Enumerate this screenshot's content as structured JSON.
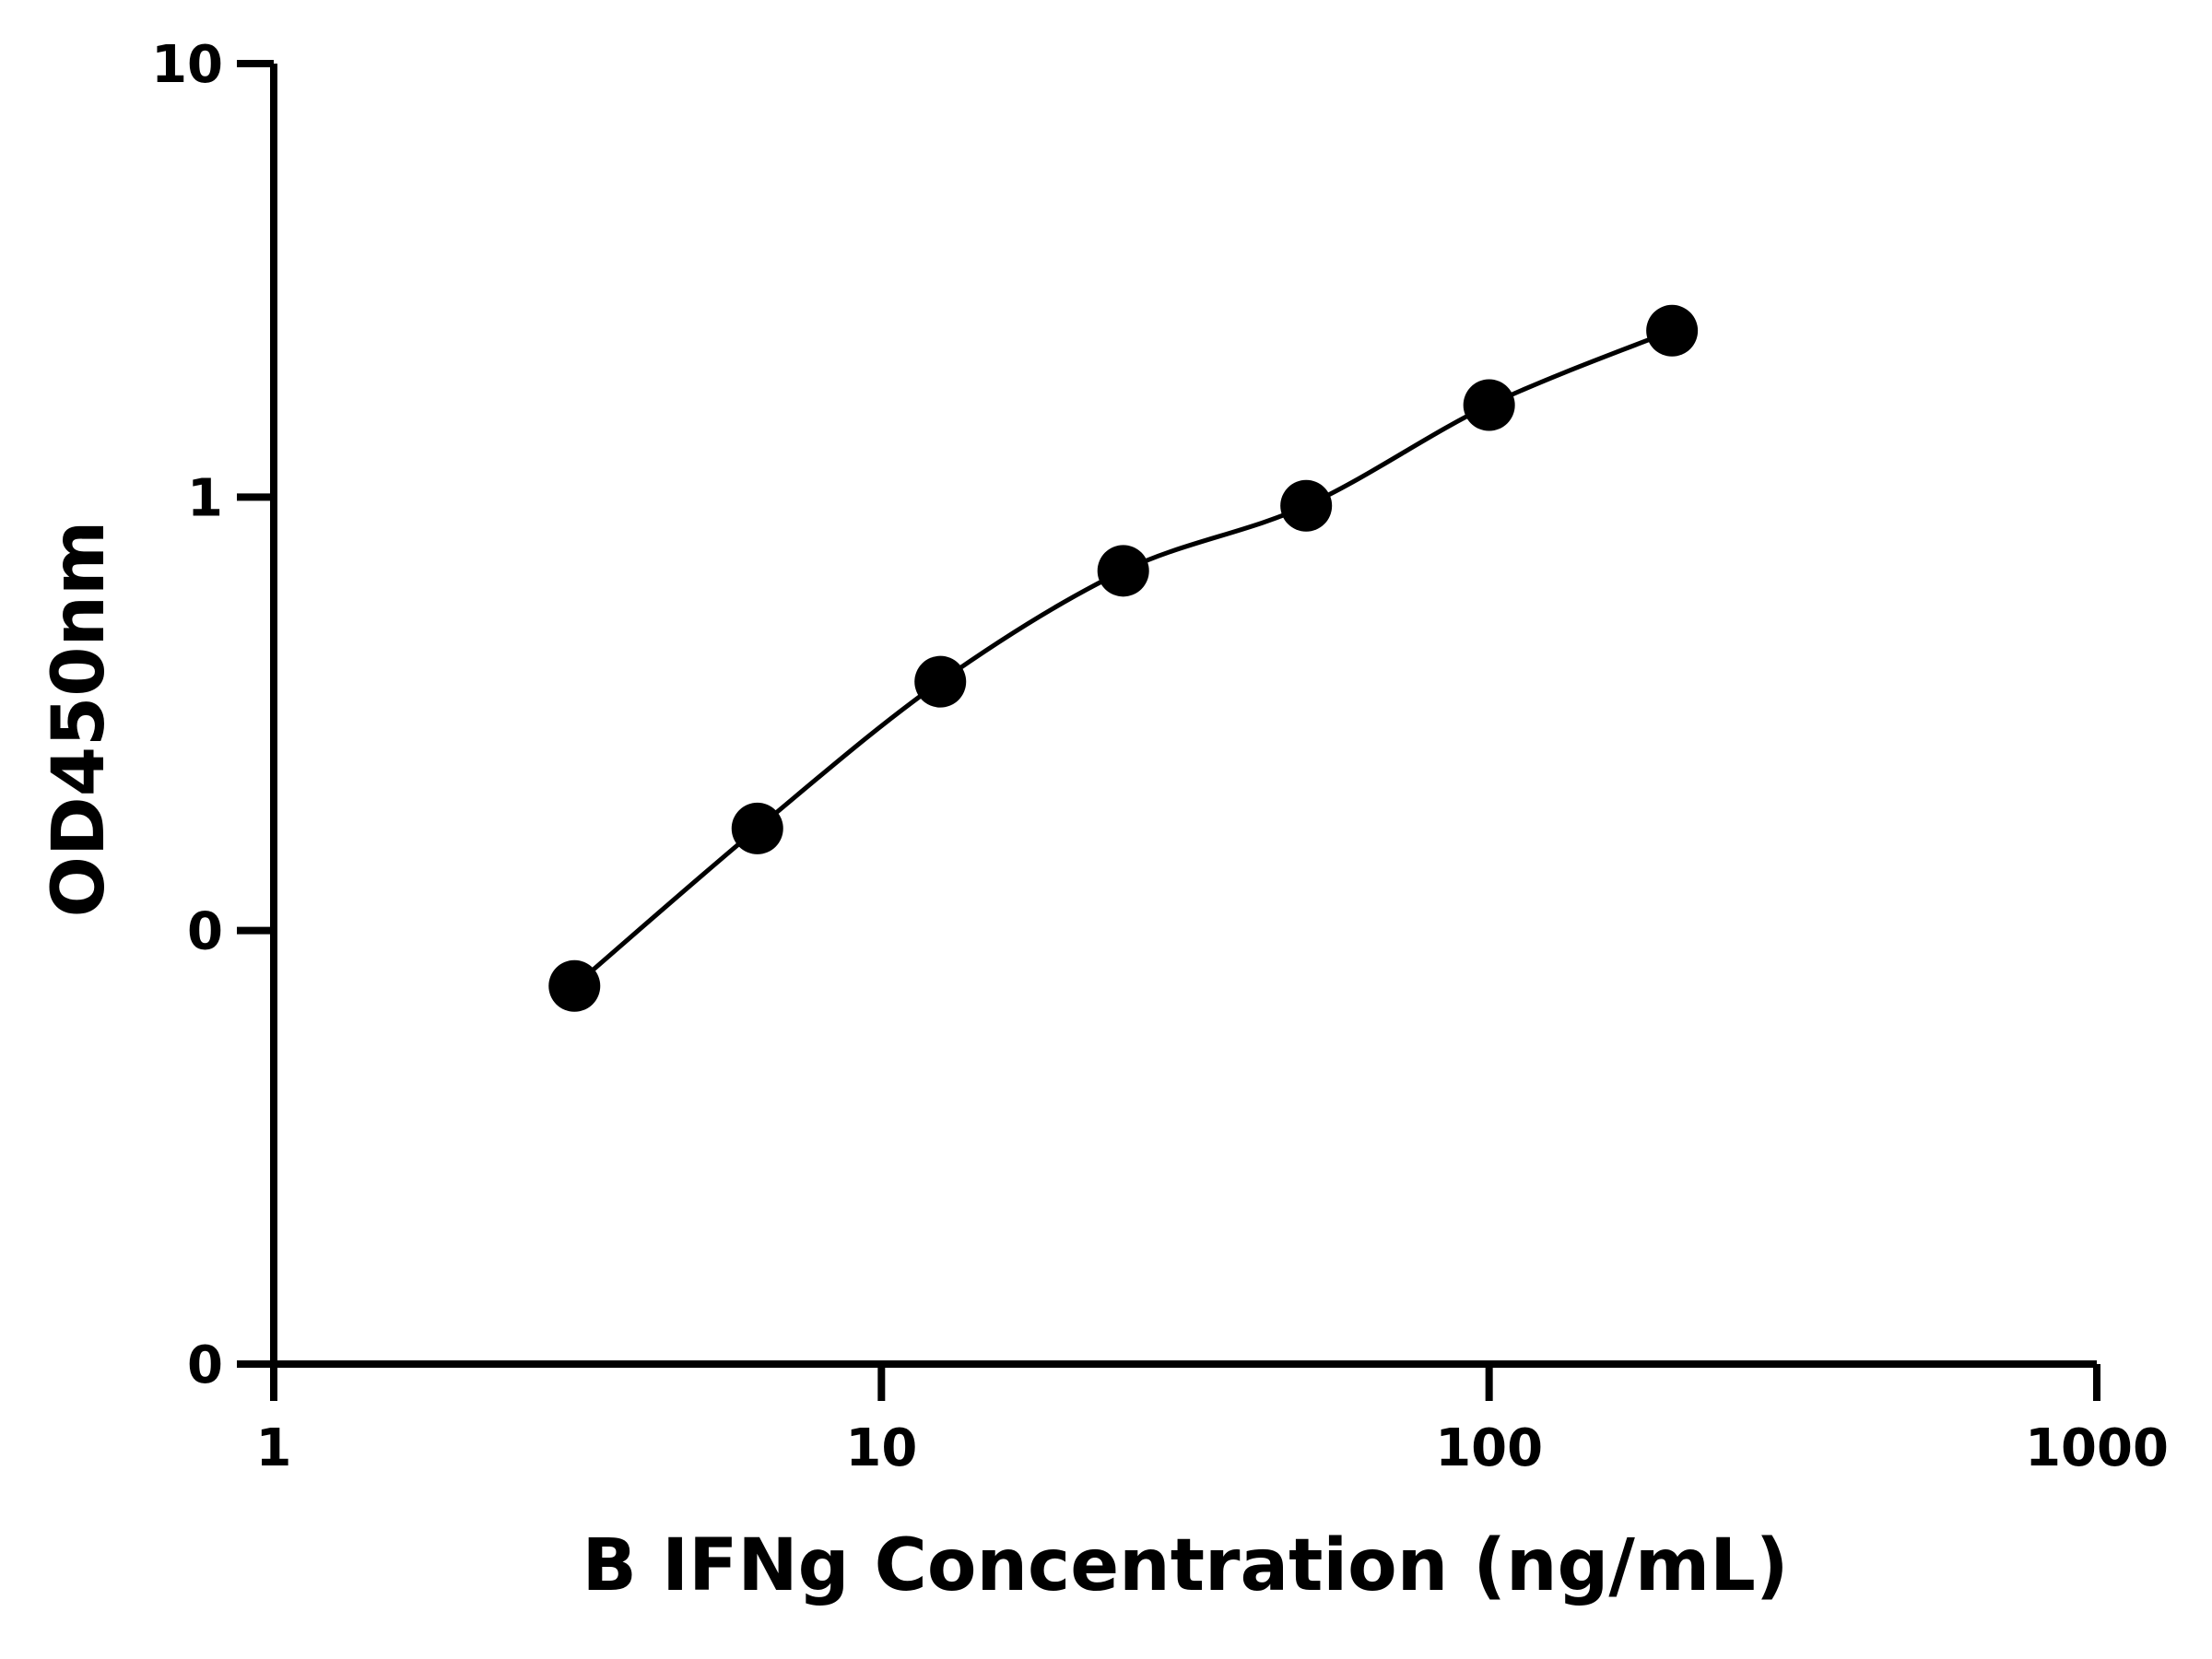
{
  "chart_data": {
    "type": "scatter",
    "xlabel": "B IFNg Concentration (ng/mL)",
    "ylabel": "OD450nm",
    "x": [
      3.125,
      6.25,
      12.5,
      25,
      50,
      100,
      200
    ],
    "series": [
      {
        "color": "#000000",
        "values": [
          0.0745,
          0.172,
          0.375,
          0.676,
          0.955,
          1.63,
          2.42
        ]
      }
    ],
    "xlog": true,
    "ylog": true,
    "xlim": [
      1,
      1000
    ],
    "xticks": [
      1,
      10,
      100,
      1000
    ],
    "ylim": [
      0.01,
      10
    ],
    "yticks": [
      {
        "value": 0.01,
        "label": "0"
      },
      {
        "value": 0.1,
        "label": "0"
      },
      1,
      10
    ],
    "grid": false
  }
}
